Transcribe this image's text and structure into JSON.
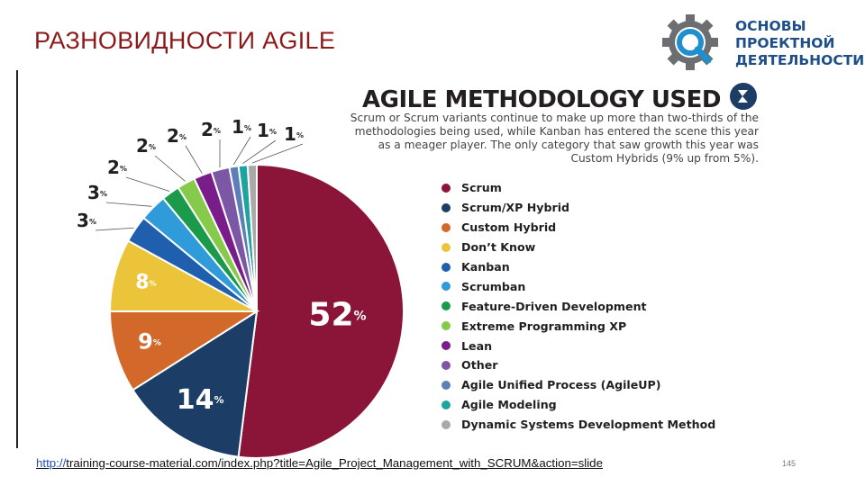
{
  "slide": {
    "title": "РАЗНОВИДНОСТИ AGILE",
    "page_number": "145"
  },
  "logo": {
    "icon": "gear-magnifier-icon",
    "lines": [
      "ОСНОВЫ",
      "ПРОЕКТНОЙ",
      "ДЕЯТЕЛЬНОСТИ"
    ],
    "colors": {
      "gear": "#6d6e71",
      "lens": "#1f8fd0",
      "text": "#1f4f88"
    }
  },
  "source": {
    "protocol": "http://",
    "rest": "training-course-material.com/index.php?title=Agile_Project_Management_with_SCRUM&action=slide"
  },
  "chart_data": {
    "type": "pie",
    "title": "AGILE METHODOLOGY USED",
    "subtitle": "Scrum or Scrum variants continue to make up more than two-thirds of the methodologies being used, while Kanban has entered the scene this year as a meager player. The only category that saw growth this year was Custom Hybrids (9% up from 5%).",
    "slices": [
      {
        "label": "Scrum",
        "value": 52,
        "color": "#8a1538"
      },
      {
        "label": "Scrum/XP Hybrid",
        "value": 14,
        "color": "#1b3d66"
      },
      {
        "label": "Custom Hybrid",
        "value": 9,
        "color": "#d2692a"
      },
      {
        "label": "Don’t Know",
        "value": 8,
        "color": "#ecc43a"
      },
      {
        "label": "Kanban",
        "value": 3,
        "color": "#1f5fae"
      },
      {
        "label": "Scrumban",
        "value": 3,
        "color": "#2f9bd9"
      },
      {
        "label": "Feature-Driven Development",
        "value": 2,
        "color": "#1a9a4a"
      },
      {
        "label": "Extreme Programming XP",
        "value": 2,
        "color": "#86c94b"
      },
      {
        "label": "Lean",
        "value": 2,
        "color": "#7a1d8a"
      },
      {
        "label": "Other",
        "value": 2,
        "color": "#7b57a6"
      },
      {
        "label": "Agile Unified Process (AgileUP)",
        "value": 1,
        "color": "#5d7fb8"
      },
      {
        "label": "Agile Modeling",
        "value": 1,
        "color": "#1fa3a0"
      },
      {
        "label": "Dynamic Systems Development Method",
        "value": 1,
        "color": "#a9a9a9"
      }
    ],
    "inside_labels": [
      {
        "slice": 0,
        "text": "52",
        "unit": "%"
      },
      {
        "slice": 1,
        "text": "14",
        "unit": "%"
      },
      {
        "slice": 2,
        "text": "9",
        "unit": "%"
      },
      {
        "slice": 3,
        "text": "8",
        "unit": "%"
      }
    ],
    "outside_labels": [
      {
        "slice": 4,
        "text": "3",
        "unit": "%"
      },
      {
        "slice": 5,
        "text": "3",
        "unit": "%"
      },
      {
        "slice": 6,
        "text": "2",
        "unit": "%"
      },
      {
        "slice": 7,
        "text": "2",
        "unit": "%"
      },
      {
        "slice": 8,
        "text": "2",
        "unit": "%"
      },
      {
        "slice": 9,
        "text": "2",
        "unit": "%"
      },
      {
        "slice": 10,
        "text": "1",
        "unit": "%"
      },
      {
        "slice": 11,
        "text": "1",
        "unit": "%"
      },
      {
        "slice": 12,
        "text": "1",
        "unit": "%"
      }
    ],
    "legend_placement": "right"
  }
}
